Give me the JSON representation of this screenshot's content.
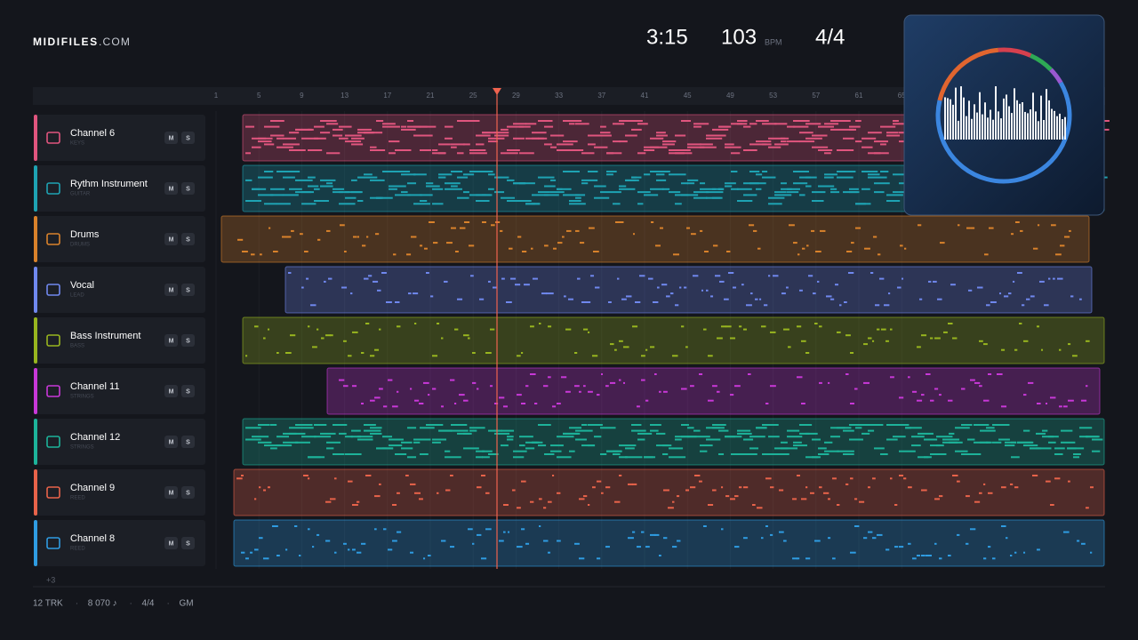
{
  "header": {
    "logo": "MIDIFILES",
    "logo_suffix": ".COM",
    "time": "3:15",
    "tempo": "103",
    "tempo_unit": "BPM",
    "meter": "4/4"
  },
  "ruler": [
    "1",
    "5",
    "9",
    "13",
    "17",
    "21",
    "25",
    "29",
    "33",
    "37",
    "41",
    "45",
    "49",
    "53",
    "57",
    "61",
    "65"
  ],
  "tracks": [
    {
      "name": "Channel 6",
      "kind": "KEYS",
      "color": "#e0557e",
      "mute": "M",
      "solo": "S"
    },
    {
      "name": "Rythm Instrument",
      "kind": "GUITAR",
      "color": "#1ea3b3",
      "mute": "M",
      "solo": "S"
    },
    {
      "name": "Drums",
      "kind": "DRUMS",
      "color": "#d9822b",
      "mute": "M",
      "solo": "S"
    },
    {
      "name": "Vocal",
      "kind": "LEAD",
      "color": "#7088ee",
      "mute": "M",
      "solo": "S"
    },
    {
      "name": "Bass Instrument",
      "kind": "BASS",
      "color": "#98b51f",
      "mute": "M",
      "solo": "S"
    },
    {
      "name": "Channel 11",
      "kind": "STRINGS",
      "color": "#c838d8",
      "mute": "M",
      "solo": "S"
    },
    {
      "name": "Channel 12",
      "kind": "STRINGS",
      "color": "#1db39a",
      "mute": "M",
      "solo": "S"
    },
    {
      "name": "Channel 9",
      "kind": "REED",
      "color": "#e8634a",
      "mute": "M",
      "solo": "S"
    },
    {
      "name": "Channel 8",
      "kind": "REED",
      "color": "#2f9ce2",
      "mute": "M",
      "solo": "S"
    }
  ],
  "more_tracks": "+3",
  "footer": {
    "items": [
      "12 TRK",
      "8 070 ♪",
      "4/4",
      "GM"
    ],
    "separator": "·"
  }
}
